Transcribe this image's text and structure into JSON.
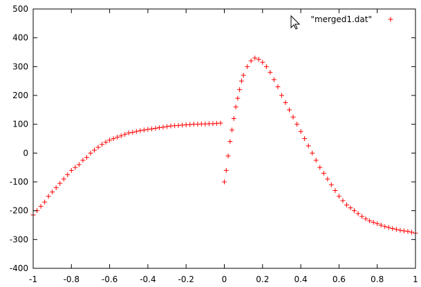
{
  "chart_data": {
    "type": "scatter",
    "title": "",
    "xlabel": "",
    "ylabel": "",
    "xlim": [
      -1,
      1
    ],
    "ylim": [
      -400,
      500
    ],
    "xticks": [
      "-1",
      "-0.8",
      "-0.6",
      "-0.4",
      "-0.2",
      "0",
      "0.2",
      "0.4",
      "0.6",
      "0.8",
      "1"
    ],
    "yticks": [
      "500",
      "400",
      "300",
      "200",
      "100",
      "0",
      "-100",
      "-200",
      "-300",
      "-400"
    ],
    "grid": false,
    "legend_position": "top-right",
    "marker": "+",
    "series": [
      {
        "name": "\"merged1.dat\"",
        "color": "#ff0000",
        "x": [
          -1.0,
          -0.98,
          -0.96,
          -0.94,
          -0.92,
          -0.9,
          -0.88,
          -0.86,
          -0.84,
          -0.82,
          -0.8,
          -0.78,
          -0.76,
          -0.74,
          -0.72,
          -0.7,
          -0.68,
          -0.66,
          -0.64,
          -0.62,
          -0.6,
          -0.58,
          -0.56,
          -0.54,
          -0.52,
          -0.5,
          -0.48,
          -0.46,
          -0.44,
          -0.42,
          -0.4,
          -0.38,
          -0.36,
          -0.34,
          -0.32,
          -0.3,
          -0.28,
          -0.26,
          -0.24,
          -0.22,
          -0.2,
          -0.18,
          -0.16,
          -0.14,
          -0.12,
          -0.1,
          -0.08,
          -0.06,
          -0.04,
          -0.02,
          0.0,
          0.01,
          0.02,
          0.03,
          0.04,
          0.05,
          0.06,
          0.07,
          0.08,
          0.09,
          0.1,
          0.12,
          0.14,
          0.16,
          0.18,
          0.2,
          0.22,
          0.24,
          0.26,
          0.28,
          0.3,
          0.32,
          0.34,
          0.36,
          0.38,
          0.4,
          0.42,
          0.44,
          0.46,
          0.48,
          0.5,
          0.52,
          0.54,
          0.56,
          0.58,
          0.6,
          0.62,
          0.64,
          0.66,
          0.68,
          0.7,
          0.72,
          0.74,
          0.76,
          0.78,
          0.8,
          0.82,
          0.84,
          0.86,
          0.88,
          0.9,
          0.92,
          0.94,
          0.96,
          0.98,
          1.0
        ],
        "y": [
          -215,
          -200,
          -185,
          -170,
          -150,
          -135,
          -120,
          -105,
          -90,
          -75,
          -60,
          -50,
          -40,
          -25,
          -15,
          0,
          10,
          20,
          30,
          38,
          45,
          50,
          55,
          60,
          65,
          70,
          72,
          75,
          78,
          80,
          82,
          84,
          86,
          88,
          90,
          92,
          94,
          95,
          96,
          97,
          98,
          99,
          100,
          100,
          101,
          101,
          102,
          102,
          103,
          104,
          -100,
          -60,
          -10,
          40,
          80,
          120,
          160,
          190,
          220,
          250,
          270,
          300,
          320,
          330,
          325,
          315,
          300,
          280,
          255,
          230,
          200,
          175,
          150,
          125,
          100,
          75,
          50,
          25,
          0,
          -25,
          -50,
          -70,
          -90,
          -110,
          -130,
          -150,
          -165,
          -180,
          -190,
          -200,
          -210,
          -220,
          -228,
          -235,
          -240,
          -245,
          -250,
          -255,
          -258,
          -262,
          -265,
          -268,
          -270,
          -272,
          -275,
          -278
        ]
      }
    ]
  }
}
